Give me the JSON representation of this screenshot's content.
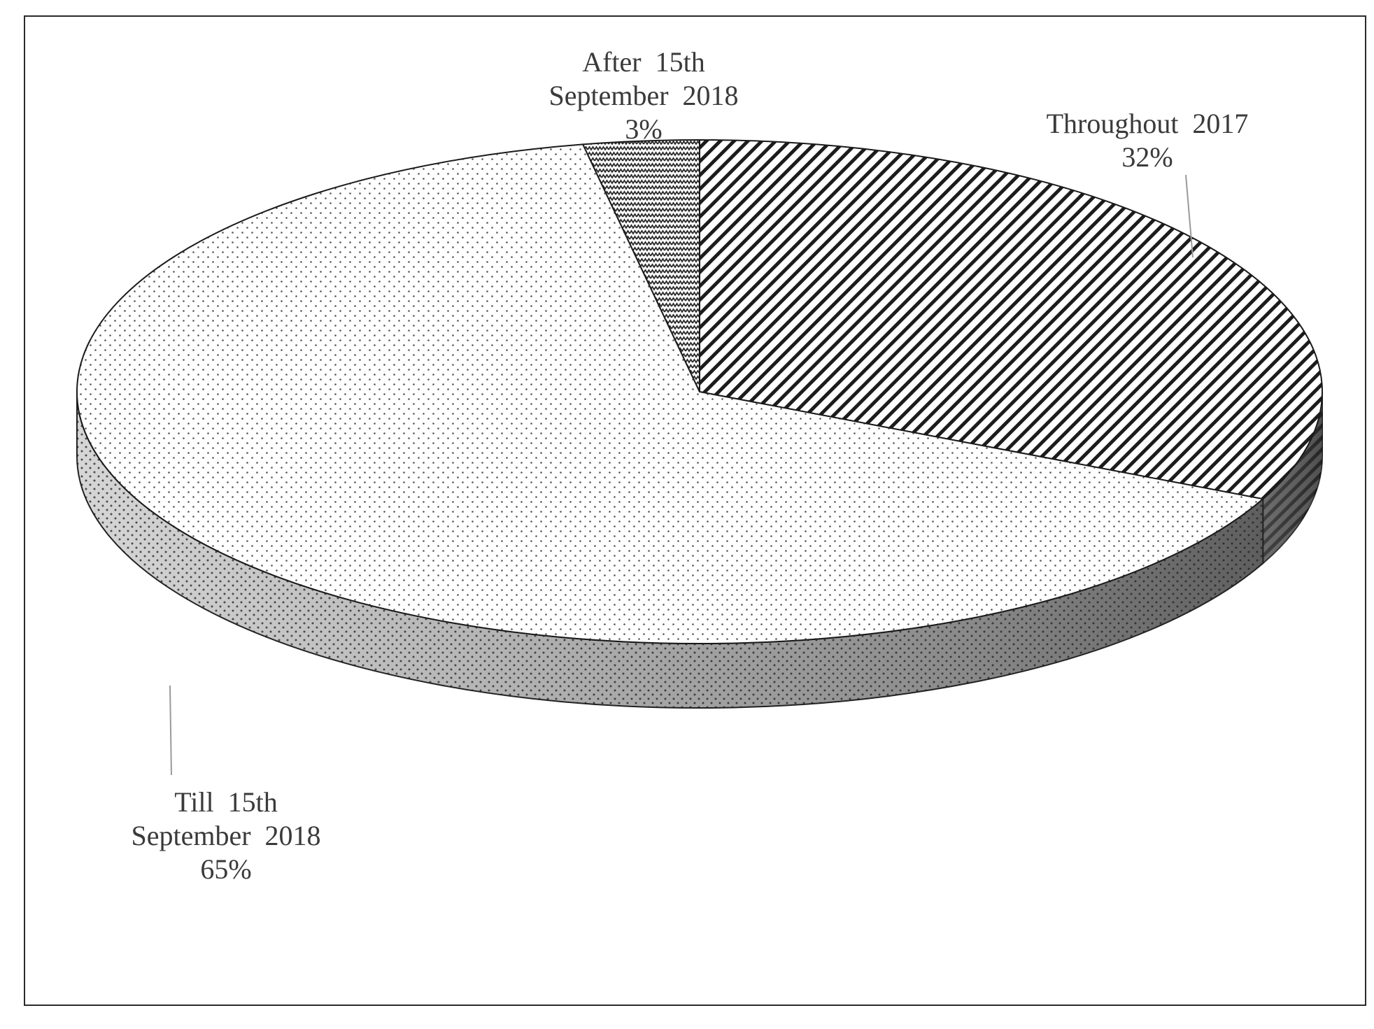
{
  "chart_data": {
    "type": "pie",
    "title": "",
    "three_d": true,
    "legend": "none",
    "slices": [
      {
        "name": "Throughout 2017",
        "value": 32,
        "label_lines": [
          "Throughout  2017",
          "32%"
        ],
        "pattern": "diagonal-stripes"
      },
      {
        "name": "Till 15th September 2018",
        "value": 65,
        "label_lines": [
          "Till  15th",
          "September  2018",
          "65%"
        ],
        "pattern": "dots"
      },
      {
        "name": "After 15th September 2018",
        "value": 3,
        "label_lines": [
          "After  15th",
          "September  2018",
          "3%"
        ],
        "pattern": "zigzag"
      }
    ]
  }
}
